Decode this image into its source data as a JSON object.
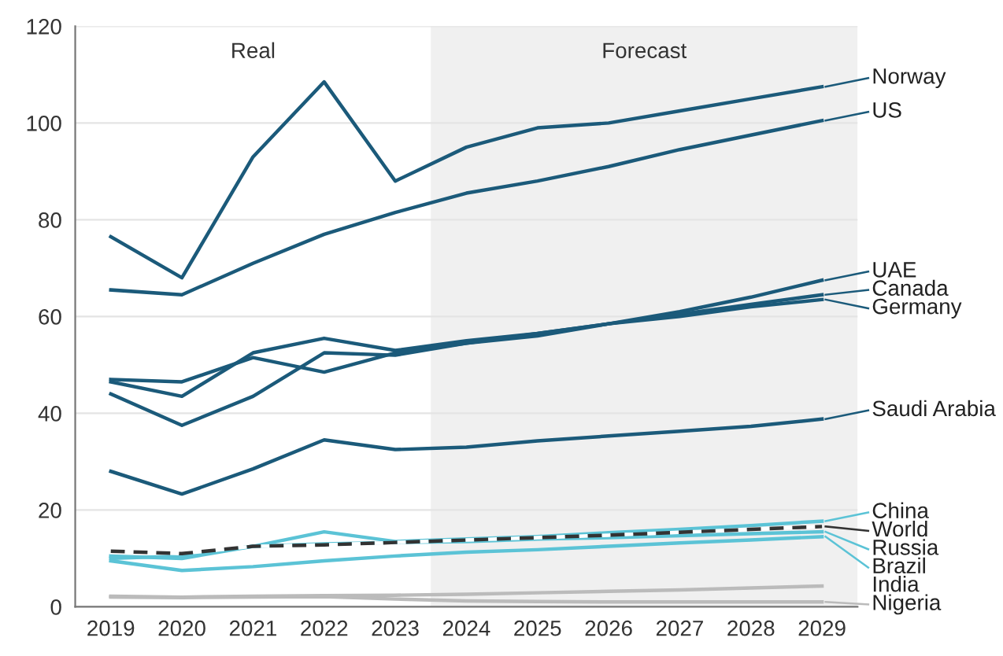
{
  "chart_data": {
    "type": "line",
    "x": [
      2019,
      2020,
      2021,
      2022,
      2023,
      2024,
      2025,
      2026,
      2027,
      2028,
      2029
    ],
    "xlim": [
      2018.5,
      2029.5
    ],
    "xticks": [
      2019,
      2020,
      2021,
      2022,
      2023,
      2024,
      2025,
      2026,
      2027,
      2028,
      2029
    ],
    "ylim": [
      0,
      120
    ],
    "yticks": [
      0,
      20,
      40,
      60,
      80,
      100,
      120
    ],
    "grid": "y",
    "legend": "right",
    "marker": "none",
    "line_style": "solid",
    "annotations": [
      "Real"
    ],
    "bands": [
      {
        "axis": "x",
        "from": 2023.5,
        "to": 2029.5,
        "label": "Forecast",
        "color": "#f0f0f0"
      }
    ],
    "series": [
      {
        "name": "Norway",
        "color": "#1b5a7a",
        "values": [
          76.5,
          68,
          93,
          108.5,
          88,
          95,
          99,
          100,
          102.5,
          105,
          107.5
        ]
      },
      {
        "name": "US",
        "color": "#1b5a7a",
        "values": [
          65.5,
          64.5,
          71,
          77,
          81.5,
          85.5,
          88,
          91,
          94.5,
          97.5,
          100.5
        ]
      },
      {
        "name": "UAE",
        "color": "#1b5a7a",
        "values": [
          44,
          37.5,
          43.5,
          52.5,
          52,
          54.5,
          56,
          58.5,
          61,
          64,
          67.5
        ]
      },
      {
        "name": "Canada",
        "color": "#1b5a7a",
        "values": [
          46.5,
          43.5,
          52.5,
          55.5,
          53,
          55,
          56.5,
          58.5,
          60.5,
          62.5,
          64.5
        ]
      },
      {
        "name": "Germany",
        "color": "#1b5a7a",
        "values": [
          47,
          46.5,
          51.5,
          48.5,
          52.5,
          54.5,
          56.5,
          58.5,
          60,
          62,
          63.5
        ]
      },
      {
        "name": "Saudi Arabia",
        "color": "#1b5a7a",
        "values": [
          28,
          23.3,
          28.5,
          34.5,
          32.5,
          33,
          34.3,
          35.3,
          36.3,
          37.3,
          38.8
        ]
      },
      {
        "name": "China",
        "color": "#5bc3d6",
        "values": [
          10,
          10.5,
          12.5,
          15.5,
          13.5,
          14,
          14.5,
          15.3,
          16,
          16.8,
          17.7
        ]
      },
      {
        "name": "World",
        "color": "#333333",
        "line_style": "dashed",
        "values": [
          11.5,
          11,
          12.5,
          12.8,
          13.3,
          13.8,
          14.3,
          14.8,
          15.4,
          16,
          16.6
        ]
      },
      {
        "name": "Russia",
        "color": "#5bc3d6",
        "values": [
          10.5,
          10,
          12.5,
          13,
          13.3,
          13.5,
          14,
          14.3,
          14.7,
          15.1,
          15.5
        ]
      },
      {
        "name": "Brazil",
        "color": "#5bc3d6",
        "values": [
          9.5,
          7.5,
          8.3,
          9.5,
          10.5,
          11.3,
          11.8,
          12.5,
          13.2,
          13.8,
          14.5
        ]
      },
      {
        "name": "India",
        "color": "#bbbbbb",
        "values": [
          2.2,
          2.0,
          2.2,
          2.3,
          2.4,
          2.6,
          2.9,
          3.2,
          3.5,
          3.9,
          4.3
        ]
      },
      {
        "name": "Nigeria",
        "color": "#bbbbbb",
        "values": [
          2.0,
          1.9,
          2.0,
          2.1,
          1.6,
          1.2,
          1.1,
          1.0,
          1.0,
          1.0,
          1.0
        ]
      }
    ]
  }
}
